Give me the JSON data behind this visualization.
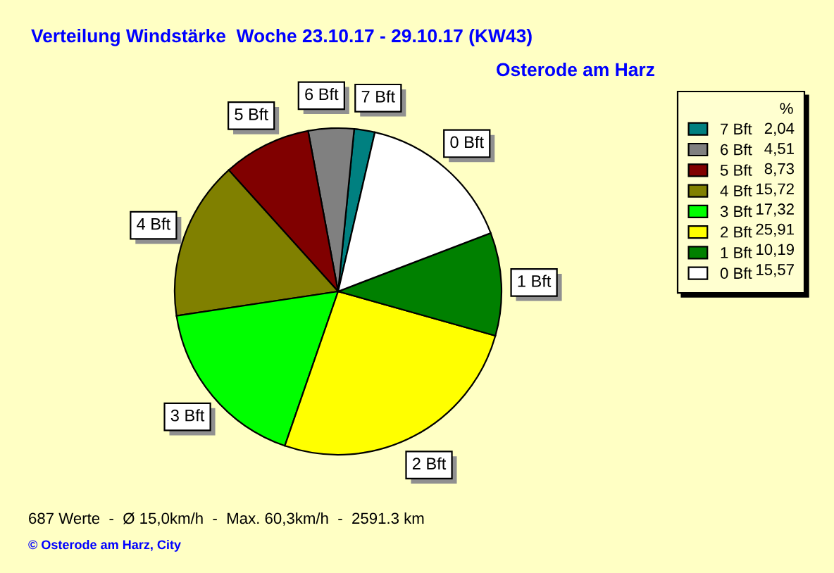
{
  "chart_data": {
    "type": "pie",
    "title": "Verteilung Windstärke  Woche 23.10.17 - 29.10.17 (KW43)",
    "subtitle": "Osterode am Harz",
    "categories": [
      "7 Bft",
      "6 Bft",
      "5 Bft",
      "4 Bft",
      "3 Bft",
      "2 Bft",
      "1 Bft",
      "0 Bft"
    ],
    "values": [
      2.04,
      4.51,
      8.73,
      15.72,
      17.32,
      25.91,
      10.19,
      15.57
    ],
    "value_labels": [
      "2,04",
      "4,51",
      "8,73",
      "15,72",
      "17,32",
      "25,91",
      "10,19",
      "15,57"
    ],
    "colors": [
      "#008080",
      "#808080",
      "#800000",
      "#808000",
      "#00ff00",
      "#ffff00",
      "#008000",
      "#ffffff"
    ],
    "legend": "top right",
    "legend_title": "%",
    "annotations": [
      "687 Werte  -  Ø 15,0km/h  -  Max. 60,3km/h  -  2591.3 km",
      "© Osterode am Harz, City"
    ]
  }
}
